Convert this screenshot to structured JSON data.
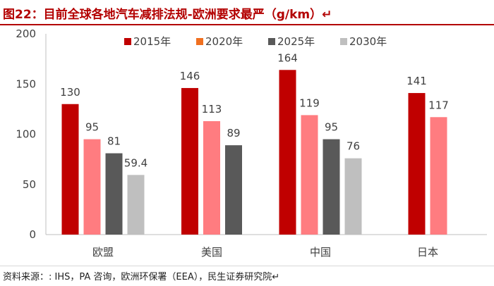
{
  "figure": {
    "title": "图22：目前全球各地汽车减排法规-欧洲要求最严（g/km）↵",
    "source": "资料来源：: IHS，PA 咨询，欧洲环保署（EEA），民生证券研究院↵"
  },
  "chart_data": {
    "type": "bar",
    "categories": [
      "欧盟",
      "美国",
      "中国",
      "日本"
    ],
    "series": [
      {
        "name": "2015年",
        "color": "#c00000",
        "values": [
          130,
          146,
          164,
          141
        ]
      },
      {
        "name": "2020年",
        "color": "#ff7c80",
        "values": [
          95,
          113,
          119,
          117
        ]
      },
      {
        "name": "2025年",
        "color": "#595959",
        "values": [
          81,
          89,
          95,
          null
        ]
      },
      {
        "name": "2030年",
        "color": "#bfbfbf",
        "values": [
          59.4,
          null,
          76,
          null
        ]
      }
    ],
    "data_labels": [
      [
        "130",
        "146",
        "164",
        "141"
      ],
      [
        "95",
        "113",
        "119",
        "117"
      ],
      [
        "81",
        "89",
        "95",
        ""
      ],
      [
        "59.4",
        "",
        "76",
        ""
      ]
    ],
    "ylim": [
      0,
      200
    ],
    "yticks": [
      0,
      50,
      100,
      150,
      200
    ],
    "legend_position": "top",
    "legend_swatch_colors": [
      "#c00000",
      "#f07020",
      "#595959",
      "#bfbfbf"
    ],
    "grid": false
  }
}
